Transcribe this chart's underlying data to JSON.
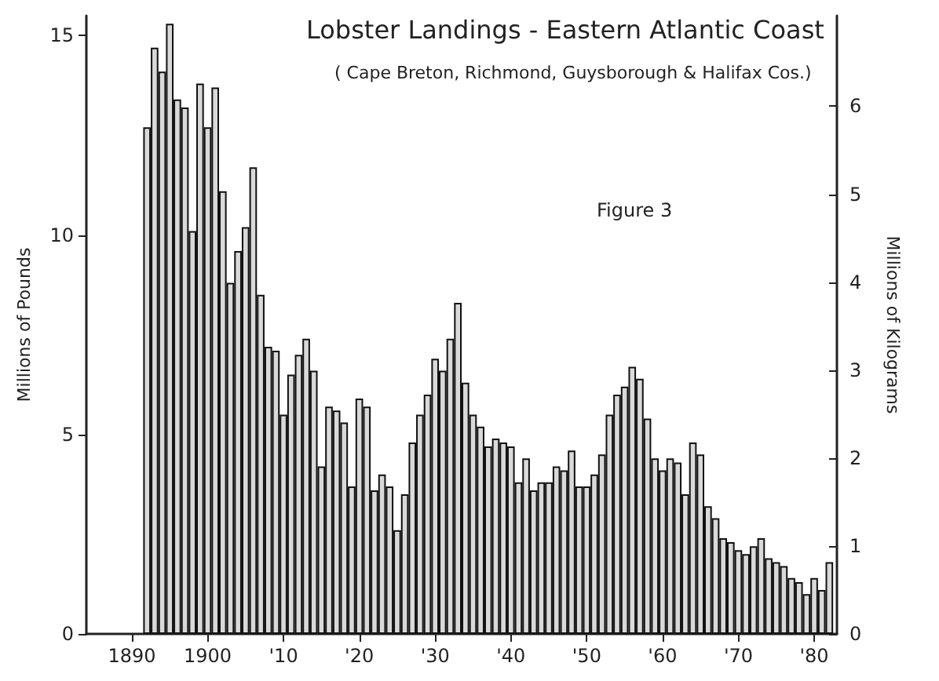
{
  "chart_data": {
    "type": "bar",
    "title": "Lobster Landings - Eastern Atlantic Coast",
    "subtitle": "( Cape Breton, Richmond, Guysborough & Halifax Cos.)",
    "ylabel": "Millions of Pounds",
    "y2label": "Millions of Kilograms",
    "annotations": [
      "Figure 3"
    ],
    "x": [
      1892,
      1893,
      1894,
      1895,
      1896,
      1897,
      1898,
      1899,
      1900,
      1901,
      1902,
      1903,
      1904,
      1905,
      1906,
      1907,
      1908,
      1909,
      1910,
      1911,
      1912,
      1913,
      1914,
      1915,
      1916,
      1917,
      1918,
      1919,
      1920,
      1921,
      1922,
      1923,
      1924,
      1925,
      1926,
      1927,
      1928,
      1929,
      1930,
      1931,
      1932,
      1933,
      1934,
      1935,
      1936,
      1937,
      1938,
      1939,
      1940,
      1941,
      1942,
      1943,
      1944,
      1945,
      1946,
      1947,
      1948,
      1949,
      1950,
      1951,
      1952,
      1953,
      1954,
      1955,
      1956,
      1957,
      1958,
      1959,
      1960,
      1961,
      1962,
      1963,
      1964,
      1965,
      1966,
      1967,
      1968,
      1969,
      1970,
      1971,
      1972,
      1973,
      1974,
      1975,
      1976,
      1977,
      1978,
      1979,
      1980,
      1981,
      1982
    ],
    "values": [
      12.7,
      14.7,
      14.1,
      15.3,
      13.4,
      13.2,
      10.1,
      13.8,
      12.7,
      13.7,
      11.1,
      8.8,
      9.6,
      10.2,
      11.7,
      8.5,
      7.2,
      7.1,
      5.5,
      6.5,
      7.0,
      7.4,
      6.6,
      4.2,
      5.7,
      5.6,
      5.3,
      3.7,
      5.9,
      5.7,
      3.6,
      4.0,
      3.7,
      2.6,
      3.5,
      4.8,
      5.5,
      6.0,
      6.9,
      6.6,
      7.4,
      8.3,
      6.3,
      5.5,
      5.2,
      4.7,
      4.9,
      4.8,
      4.7,
      3.8,
      4.4,
      3.6,
      3.8,
      3.8,
      4.2,
      4.1,
      4.6,
      3.7,
      3.7,
      4.0,
      4.5,
      5.5,
      6.0,
      6.2,
      6.7,
      6.4,
      5.4,
      4.4,
      4.1,
      4.4,
      4.3,
      3.5,
      4.8,
      4.5,
      3.2,
      2.9,
      2.4,
      2.3,
      2.1,
      2.0,
      2.2,
      2.4,
      1.9,
      1.8,
      1.7,
      1.4,
      1.3,
      1.0,
      1.4,
      1.1,
      1.8
    ],
    "color": "#d9d9d9",
    "xlim": [
      1884,
      1983
    ],
    "xticks": [
      {
        "value": 1890,
        "label": "1890"
      },
      {
        "value": 1900,
        "label": "1900"
      },
      {
        "value": 1910,
        "label": "'10"
      },
      {
        "value": 1920,
        "label": "'20"
      },
      {
        "value": 1930,
        "label": "'30"
      },
      {
        "value": 1940,
        "label": "'40"
      },
      {
        "value": 1950,
        "label": "'50"
      },
      {
        "value": 1960,
        "label": "'60"
      },
      {
        "value": 1970,
        "label": "'70"
      },
      {
        "value": 1980,
        "label": "'80"
      }
    ],
    "ylim": [
      0,
      15.5
    ],
    "yticks": [
      0,
      5,
      10,
      15
    ],
    "y2lim": [
      0,
      7.03
    ],
    "y2ticks": [
      0,
      1,
      2,
      3,
      4,
      5,
      6
    ]
  }
}
